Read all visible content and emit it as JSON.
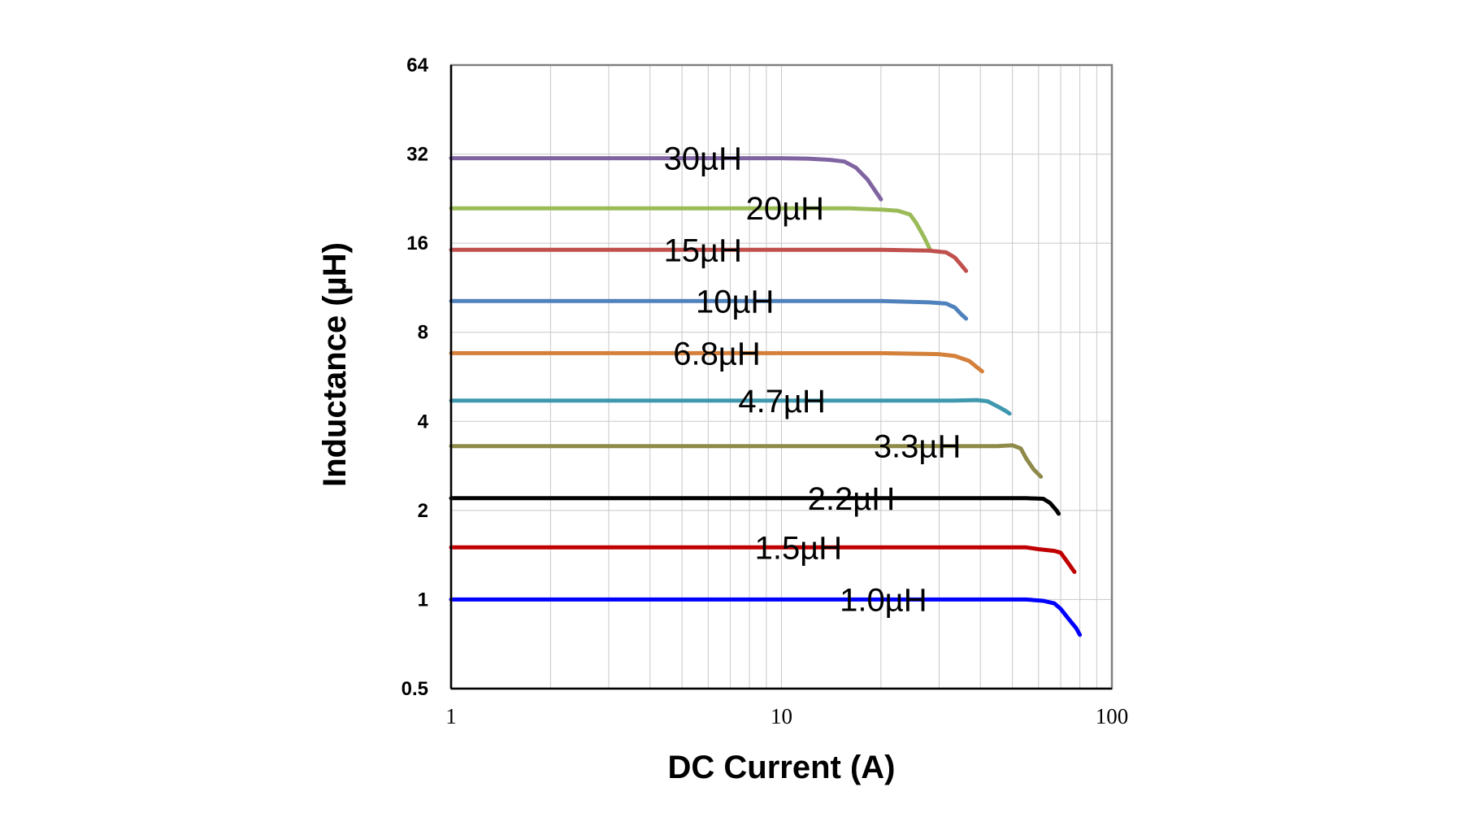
{
  "chart_data": {
    "type": "line",
    "title": "",
    "xlabel": "DC Current (A)",
    "ylabel": "Inductance (µH)",
    "xscale": "log",
    "yscale": "log2",
    "xlim": [
      1,
      100
    ],
    "ylim": [
      0.5,
      64
    ],
    "grid": true,
    "legend": "none (inline series labels)",
    "x_ticks": [
      "1",
      "10",
      "100"
    ],
    "y_ticks": [
      "0.5",
      "1",
      "2",
      "4",
      "8",
      "16",
      "32",
      "64"
    ],
    "x_tick_values": [
      1,
      10,
      100
    ],
    "y_tick_values": [
      0.5,
      1,
      2,
      4,
      8,
      16,
      32,
      64
    ],
    "series": [
      {
        "name": "30µH",
        "color": "#8064A2",
        "label_at": [
          4.4,
          31
        ],
        "points": [
          [
            1,
            31
          ],
          [
            10,
            31
          ],
          [
            12,
            30.9
          ],
          [
            14,
            30.6
          ],
          [
            15.5,
            30.2
          ],
          [
            16.8,
            28.8
          ],
          [
            18.2,
            26.3
          ],
          [
            20,
            22.5
          ]
        ]
      },
      {
        "name": "20µH",
        "color": "#9BBB59",
        "label_at": [
          7.8,
          21
        ],
        "points": [
          [
            1,
            21
          ],
          [
            16,
            21
          ],
          [
            20,
            20.8
          ],
          [
            22.5,
            20.6
          ],
          [
            24.5,
            20
          ],
          [
            25.5,
            18.8
          ],
          [
            27,
            16.8
          ],
          [
            28.2,
            15.2
          ]
        ]
      },
      {
        "name": "15µH",
        "color": "#C0504D",
        "label_at": [
          4.4,
          15.2
        ],
        "points": [
          [
            1,
            15.2
          ],
          [
            20,
            15.2
          ],
          [
            28,
            15.1
          ],
          [
            31.5,
            14.9
          ],
          [
            33.5,
            14.3
          ],
          [
            35,
            13.5
          ],
          [
            36.2,
            12.9
          ]
        ]
      },
      {
        "name": "10µH",
        "color": "#4F81BD",
        "label_at": [
          5.5,
          10.2
        ],
        "points": [
          [
            1,
            10.2
          ],
          [
            20,
            10.2
          ],
          [
            28,
            10.1
          ],
          [
            31.5,
            10.0
          ],
          [
            33.5,
            9.7
          ],
          [
            35,
            9.2
          ],
          [
            36.2,
            8.9
          ]
        ]
      },
      {
        "name": "6.8µH",
        "color": "#D47F3A",
        "label_at": [
          4.7,
          6.8
        ],
        "points": [
          [
            1,
            6.8
          ],
          [
            20,
            6.8
          ],
          [
            30,
            6.75
          ],
          [
            33.5,
            6.65
          ],
          [
            37,
            6.4
          ],
          [
            39,
            6.1
          ],
          [
            40.5,
            5.9
          ]
        ]
      },
      {
        "name": "4.7µH",
        "color": "#3F98AE",
        "label_at": [
          7.4,
          4.7
        ],
        "points": [
          [
            1,
            4.7
          ],
          [
            20,
            4.7
          ],
          [
            33,
            4.7
          ],
          [
            39,
            4.72
          ],
          [
            42,
            4.68
          ],
          [
            45,
            4.5
          ],
          [
            47.5,
            4.35
          ],
          [
            49,
            4.25
          ]
        ]
      },
      {
        "name": "3.3µH",
        "color": "#8E8A4A",
        "label_at": [
          19,
          3.3
        ],
        "points": [
          [
            1,
            3.3
          ],
          [
            30,
            3.3
          ],
          [
            45,
            3.3
          ],
          [
            50,
            3.32
          ],
          [
            53,
            3.24
          ],
          [
            55,
            3.0
          ],
          [
            58,
            2.75
          ],
          [
            61,
            2.6
          ]
        ]
      },
      {
        "name": "2.2µH",
        "color": "#000000",
        "label_at": [
          12,
          2.2
        ],
        "points": [
          [
            1,
            2.2
          ],
          [
            40,
            2.2
          ],
          [
            55,
            2.2
          ],
          [
            62,
            2.19
          ],
          [
            65,
            2.12
          ],
          [
            68,
            2.0
          ],
          [
            69,
            1.95
          ]
        ]
      },
      {
        "name": "1.5µH",
        "color": "#C00000",
        "label_at": [
          8.3,
          1.5
        ],
        "points": [
          [
            1,
            1.5
          ],
          [
            40,
            1.5
          ],
          [
            55,
            1.5
          ],
          [
            60,
            1.48
          ],
          [
            67,
            1.46
          ],
          [
            70,
            1.44
          ],
          [
            73,
            1.35
          ],
          [
            77,
            1.24
          ]
        ]
      },
      {
        "name": "1.0µH",
        "color": "#0000FF",
        "label_at": [
          15,
          1.0
        ],
        "points": [
          [
            1,
            1.0
          ],
          [
            40,
            1.0
          ],
          [
            55,
            1.0
          ],
          [
            62,
            0.99
          ],
          [
            67,
            0.97
          ],
          [
            70,
            0.93
          ],
          [
            74,
            0.86
          ],
          [
            78,
            0.8
          ],
          [
            80,
            0.76
          ]
        ]
      }
    ]
  }
}
